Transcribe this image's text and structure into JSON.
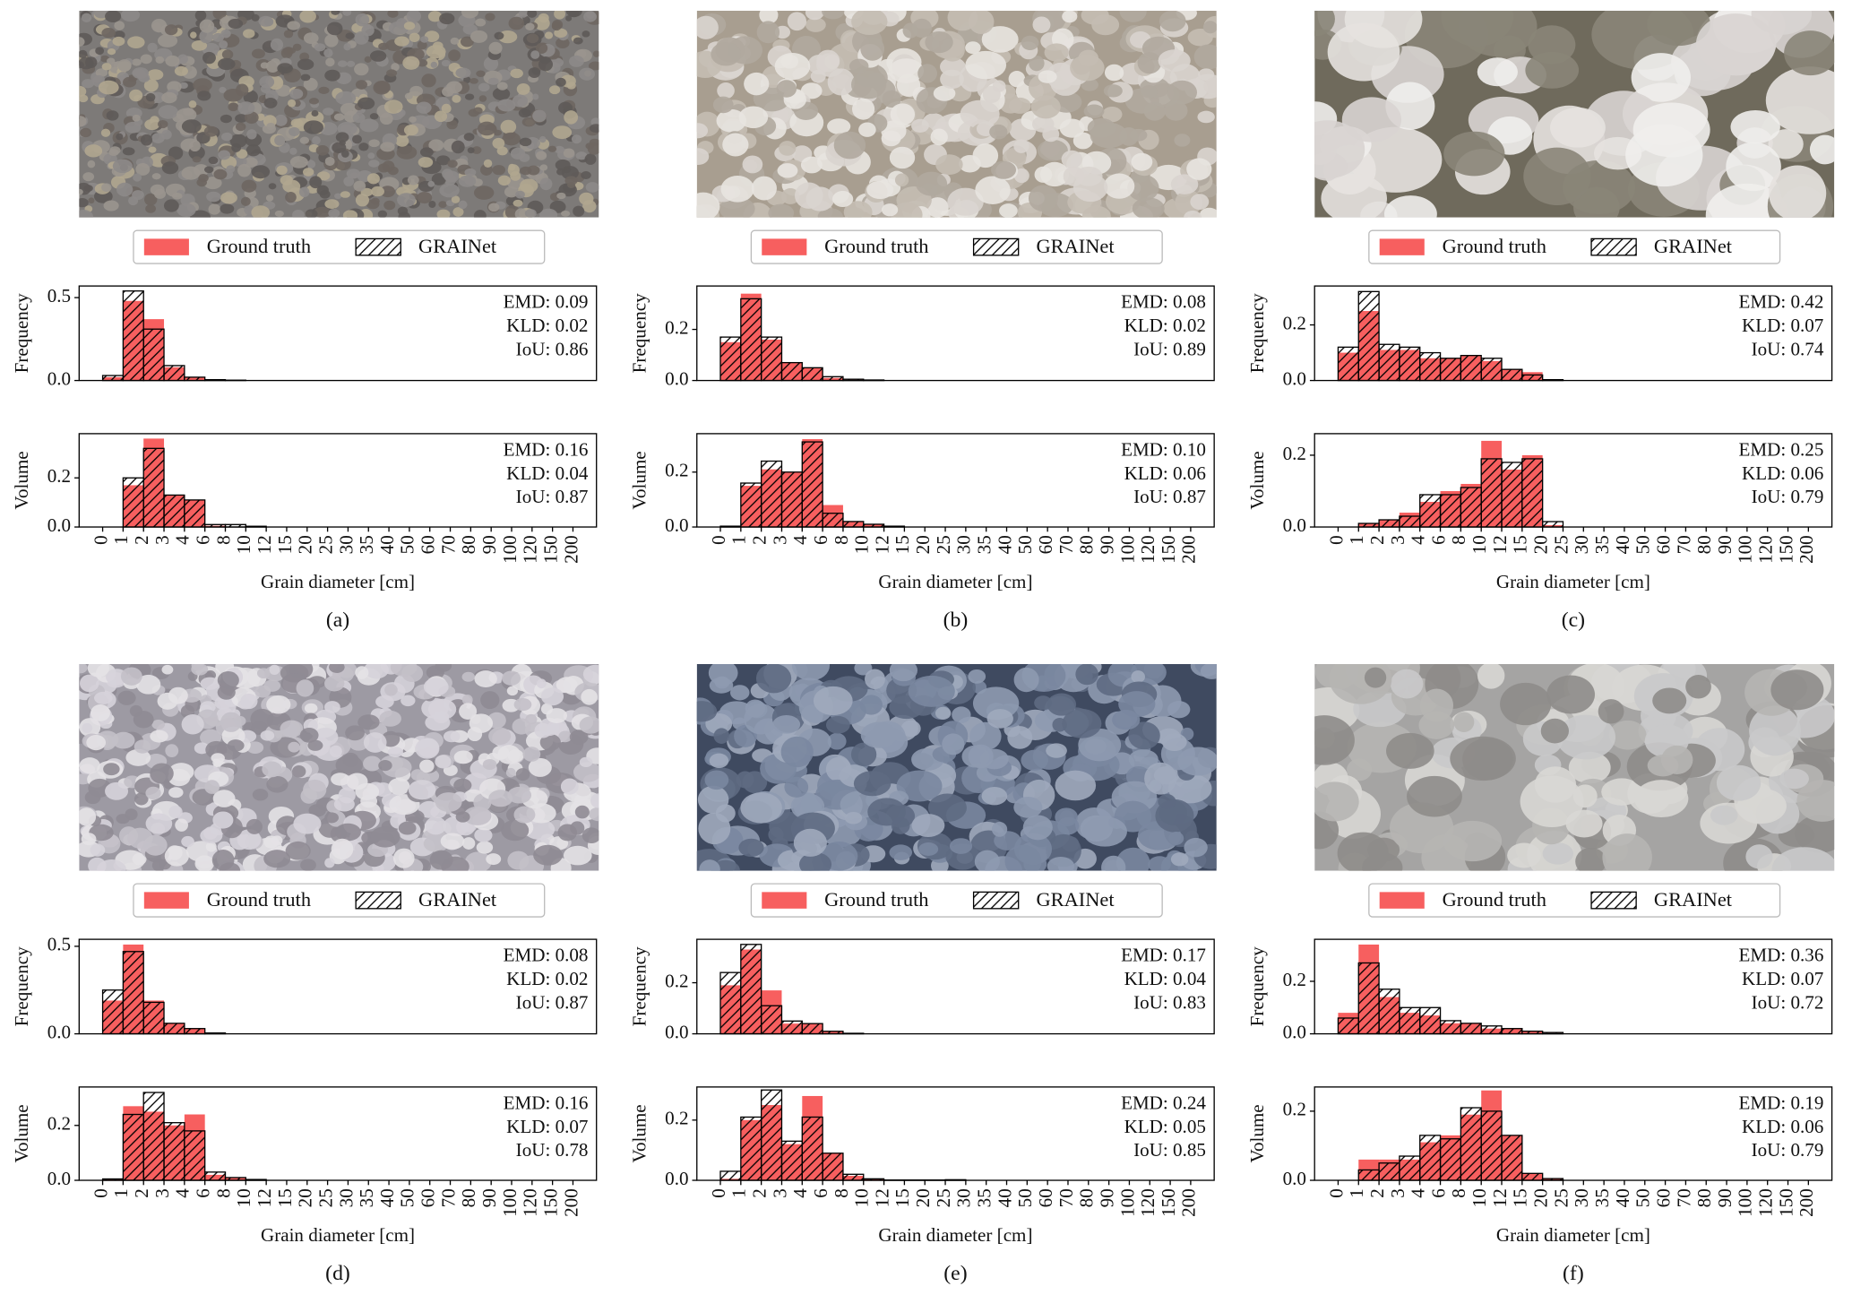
{
  "chart_data": [
    {
      "type": "histogram",
      "ylabel": "Frequency",
      "bins": [
        0,
        1,
        2,
        3,
        4,
        6,
        8,
        10,
        12,
        15,
        20,
        25,
        30,
        35,
        40,
        50,
        60,
        70,
        80,
        90,
        100,
        120,
        150,
        200
      ],
      "series": [
        {
          "name": "Ground truth",
          "color": "#f75f5f",
          "values": [
            0.02,
            0.48,
            0.37,
            0.08,
            0.02,
            0.003,
            0,
            0,
            0,
            0,
            0,
            0,
            0,
            0,
            0,
            0,
            0,
            0,
            0,
            0,
            0,
            0,
            0
          ]
        },
        {
          "name": "GRAINet",
          "color": "#000000",
          "hatch": "//",
          "values": [
            0.03,
            0.54,
            0.31,
            0.09,
            0.02,
            0.005,
            0.002,
            0,
            0,
            0,
            0,
            0,
            0,
            0,
            0,
            0,
            0,
            0,
            0,
            0,
            0,
            0,
            0
          ]
        }
      ],
      "ylim": [
        0,
        0.57
      ],
      "yticks": [
        {
          "value": 0,
          "label": "0.0"
        },
        0.5
      ],
      "annotations": [
        "EMD: 0.09",
        "KLD: 0.02",
        "IoU: 0.86"
      ]
    },
    {
      "type": "histogram",
      "ylabel": "Volume",
      "xlabel": "Grain diameter [cm]",
      "caption": "(a)",
      "bins": [
        0,
        1,
        2,
        3,
        4,
        6,
        8,
        10,
        12,
        15,
        20,
        25,
        30,
        35,
        40,
        50,
        60,
        70,
        80,
        90,
        100,
        120,
        150,
        200
      ],
      "series": [
        {
          "color": "#f75f5f",
          "values": [
            0,
            0.17,
            0.36,
            0.13,
            0.11,
            0.005,
            0.002,
            0,
            0,
            0,
            0,
            0,
            0,
            0,
            0,
            0,
            0,
            0,
            0,
            0,
            0,
            0,
            0
          ]
        },
        {
          "color": "#000000",
          "hatch": "//",
          "values": [
            0,
            0.2,
            0.32,
            0.13,
            0.11,
            0.01,
            0.01,
            0.003,
            0,
            0,
            0,
            0,
            0,
            0,
            0,
            0,
            0,
            0,
            0,
            0,
            0,
            0,
            0
          ]
        }
      ],
      "ylim": [
        0,
        0.38
      ],
      "yticks": [
        {
          "value": 0,
          "label": "0.0"
        },
        0.2
      ],
      "annotations": [
        "EMD: 0.16",
        "KLD: 0.04",
        "IoU: 0.87"
      ]
    },
    {
      "type": "histogram",
      "ylabel": "Frequency",
      "bins": [
        0,
        1,
        2,
        3,
        4,
        6,
        8,
        10,
        12,
        15,
        20,
        25,
        30,
        35,
        40,
        50,
        60,
        70,
        80,
        90,
        100,
        120,
        150,
        200
      ],
      "series": [
        {
          "name": "Ground truth",
          "color": "#f75f5f",
          "values": [
            0.15,
            0.34,
            0.16,
            0.07,
            0.05,
            0.01,
            0.003,
            0.001,
            0,
            0,
            0,
            0,
            0,
            0,
            0,
            0,
            0,
            0,
            0,
            0,
            0,
            0,
            0
          ]
        },
        {
          "name": "GRAINet",
          "color": "#000000",
          "hatch": "//",
          "values": [
            0.17,
            0.32,
            0.17,
            0.07,
            0.05,
            0.015,
            0.005,
            0.002,
            0,
            0,
            0,
            0,
            0,
            0,
            0,
            0,
            0,
            0,
            0,
            0,
            0,
            0,
            0
          ]
        }
      ],
      "ylim": [
        0,
        0.37
      ],
      "yticks": [
        {
          "value": 0,
          "label": "0.0"
        },
        0.2
      ],
      "annotations": [
        "EMD: 0.08",
        "KLD: 0.02",
        "IoU: 0.89"
      ]
    },
    {
      "type": "histogram",
      "ylabel": "Volume",
      "xlabel": "Grain diameter [cm]",
      "caption": "(b)",
      "bins": [
        0,
        1,
        2,
        3,
        4,
        6,
        8,
        10,
        12,
        15,
        20,
        25,
        30,
        35,
        40,
        50,
        60,
        70,
        80,
        90,
        100,
        120,
        150,
        200
      ],
      "series": [
        {
          "color": "#f75f5f",
          "values": [
            0,
            0.15,
            0.21,
            0.2,
            0.32,
            0.08,
            0.02,
            0.01,
            0.002,
            0,
            0,
            0,
            0,
            0,
            0,
            0,
            0,
            0,
            0,
            0,
            0,
            0,
            0
          ]
        },
        {
          "color": "#000000",
          "hatch": "//",
          "values": [
            0.003,
            0.16,
            0.24,
            0.2,
            0.31,
            0.05,
            0.02,
            0.01,
            0.003,
            0,
            0,
            0,
            0,
            0,
            0,
            0,
            0,
            0,
            0,
            0,
            0,
            0,
            0
          ]
        }
      ],
      "ylim": [
        0,
        0.34
      ],
      "yticks": [
        {
          "value": 0,
          "label": "0.0"
        },
        0.2
      ],
      "annotations": [
        "EMD: 0.10",
        "KLD: 0.06",
        "IoU: 0.87"
      ]
    },
    {
      "type": "histogram",
      "ylabel": "Frequency",
      "bins": [
        0,
        1,
        2,
        3,
        4,
        6,
        8,
        10,
        12,
        15,
        20,
        25,
        30,
        35,
        40,
        50,
        60,
        70,
        80,
        90,
        100,
        120,
        150,
        200
      ],
      "series": [
        {
          "name": "Ground truth",
          "color": "#f75f5f",
          "values": [
            0.1,
            0.25,
            0.11,
            0.11,
            0.08,
            0.08,
            0.09,
            0.07,
            0.04,
            0.03,
            0,
            0,
            0,
            0,
            0,
            0,
            0,
            0,
            0,
            0,
            0,
            0,
            0
          ]
        },
        {
          "name": "GRAINet",
          "color": "#000000",
          "hatch": "//",
          "values": [
            0.12,
            0.32,
            0.13,
            0.12,
            0.1,
            0.08,
            0.09,
            0.08,
            0.04,
            0.02,
            0.003,
            0,
            0,
            0,
            0,
            0,
            0,
            0,
            0,
            0,
            0,
            0,
            0
          ]
        }
      ],
      "ylim": [
        0,
        0.34
      ],
      "yticks": [
        {
          "value": 0,
          "label": "0.0"
        },
        0.2
      ],
      "annotations": [
        "EMD: 0.42",
        "KLD: 0.07",
        "IoU: 0.74"
      ]
    },
    {
      "type": "histogram",
      "ylabel": "Volume",
      "xlabel": "Grain diameter [cm]",
      "caption": "(c)",
      "bins": [
        0,
        1,
        2,
        3,
        4,
        6,
        8,
        10,
        12,
        15,
        20,
        25,
        30,
        35,
        40,
        50,
        60,
        70,
        80,
        90,
        100,
        120,
        150,
        200
      ],
      "series": [
        {
          "color": "#f75f5f",
          "values": [
            0,
            0.01,
            0.02,
            0.04,
            0.07,
            0.1,
            0.12,
            0.24,
            0.16,
            0.2,
            0.005,
            0,
            0,
            0,
            0,
            0,
            0,
            0,
            0,
            0,
            0,
            0,
            0
          ]
        },
        {
          "color": "#000000",
          "hatch": "//",
          "values": [
            0,
            0.01,
            0.02,
            0.03,
            0.09,
            0.09,
            0.11,
            0.19,
            0.18,
            0.19,
            0.015,
            0,
            0,
            0,
            0,
            0,
            0,
            0,
            0,
            0,
            0,
            0,
            0
          ]
        }
      ],
      "ylim": [
        0,
        0.26
      ],
      "yticks": [
        {
          "value": 0,
          "label": "0.0"
        },
        0.2
      ],
      "annotations": [
        "EMD: 0.25",
        "KLD: 0.06",
        "IoU: 0.79"
      ]
    },
    {
      "type": "histogram",
      "ylabel": "Frequency",
      "bins": [
        0,
        1,
        2,
        3,
        4,
        6,
        8,
        10,
        12,
        15,
        20,
        25,
        30,
        35,
        40,
        50,
        60,
        70,
        80,
        90,
        100,
        120,
        150,
        200
      ],
      "series": [
        {
          "name": "Ground truth",
          "color": "#f75f5f",
          "values": [
            0.19,
            0.51,
            0.19,
            0.06,
            0.03,
            0.003,
            0,
            0,
            0,
            0,
            0,
            0,
            0,
            0,
            0,
            0,
            0,
            0,
            0,
            0,
            0,
            0,
            0
          ]
        },
        {
          "name": "GRAINet",
          "color": "#000000",
          "hatch": "//",
          "values": [
            0.25,
            0.47,
            0.18,
            0.06,
            0.03,
            0.005,
            0,
            0,
            0,
            0,
            0,
            0,
            0,
            0,
            0,
            0,
            0,
            0,
            0,
            0,
            0,
            0,
            0
          ]
        }
      ],
      "ylim": [
        0,
        0.54
      ],
      "yticks": [
        {
          "value": 0,
          "label": "0.0"
        },
        0.5
      ],
      "annotations": [
        "EMD: 0.08",
        "KLD: 0.02",
        "IoU: 0.87"
      ]
    },
    {
      "type": "histogram",
      "ylabel": "Volume",
      "xlabel": "Grain diameter [cm]",
      "caption": "(d)",
      "bins": [
        0,
        1,
        2,
        3,
        4,
        6,
        8,
        10,
        12,
        15,
        20,
        25,
        30,
        35,
        40,
        50,
        60,
        70,
        80,
        90,
        100,
        120,
        150,
        200
      ],
      "series": [
        {
          "color": "#f75f5f",
          "values": [
            0.005,
            0.27,
            0.25,
            0.2,
            0.24,
            0.02,
            0.01,
            0.003,
            0,
            0,
            0,
            0,
            0,
            0,
            0,
            0,
            0,
            0,
            0,
            0,
            0,
            0,
            0
          ]
        },
        {
          "color": "#000000",
          "hatch": "//",
          "values": [
            0.005,
            0.24,
            0.32,
            0.21,
            0.18,
            0.03,
            0.01,
            0.003,
            0,
            0,
            0,
            0,
            0,
            0,
            0,
            0,
            0,
            0,
            0,
            0,
            0,
            0,
            0
          ]
        }
      ],
      "ylim": [
        0,
        0.34
      ],
      "yticks": [
        {
          "value": 0,
          "label": "0.0"
        },
        0.2
      ],
      "annotations": [
        "EMD: 0.16",
        "KLD: 0.07",
        "IoU: 0.78"
      ]
    },
    {
      "type": "histogram",
      "ylabel": "Frequency",
      "bins": [
        0,
        1,
        2,
        3,
        4,
        6,
        8,
        10,
        12,
        15,
        20,
        25,
        30,
        35,
        40,
        50,
        60,
        70,
        80,
        90,
        100,
        120,
        150,
        200
      ],
      "series": [
        {
          "name": "Ground truth",
          "color": "#f75f5f",
          "values": [
            0.19,
            0.33,
            0.17,
            0.04,
            0.04,
            0.01,
            0.002,
            0,
            0,
            0,
            0,
            0,
            0,
            0,
            0,
            0,
            0,
            0,
            0,
            0,
            0,
            0,
            0
          ]
        },
        {
          "name": "GRAINet",
          "color": "#000000",
          "hatch": "//",
          "values": [
            0.24,
            0.35,
            0.11,
            0.05,
            0.04,
            0.01,
            0.002,
            0,
            0,
            0,
            0,
            0,
            0,
            0,
            0,
            0,
            0,
            0,
            0,
            0,
            0,
            0,
            0
          ]
        }
      ],
      "ylim": [
        0,
        0.37
      ],
      "yticks": [
        {
          "value": 0,
          "label": "0.0"
        },
        0.2
      ],
      "annotations": [
        "EMD: 0.17",
        "KLD: 0.04",
        "IoU: 0.83"
      ]
    },
    {
      "type": "histogram",
      "ylabel": "Volume",
      "xlabel": "Grain diameter [cm]",
      "caption": "(e)",
      "bins": [
        0,
        1,
        2,
        3,
        4,
        6,
        8,
        10,
        12,
        15,
        20,
        25,
        30,
        35,
        40,
        50,
        60,
        70,
        80,
        90,
        100,
        120,
        150,
        200
      ],
      "series": [
        {
          "color": "#f75f5f",
          "values": [
            0.005,
            0.2,
            0.25,
            0.12,
            0.28,
            0.09,
            0.015,
            0.005,
            0,
            0,
            0,
            0,
            0,
            0,
            0,
            0,
            0,
            0,
            0,
            0,
            0,
            0,
            0
          ]
        },
        {
          "color": "#000000",
          "hatch": "//",
          "values": [
            0.03,
            0.21,
            0.3,
            0.13,
            0.21,
            0.09,
            0.02,
            0.005,
            0.001,
            0.001,
            0.001,
            0.002,
            0,
            0,
            0,
            0,
            0,
            0,
            0,
            0,
            0,
            0,
            0
          ]
        }
      ],
      "ylim": [
        0,
        0.31
      ],
      "yticks": [
        {
          "value": 0,
          "label": "0.0"
        },
        0.2
      ],
      "annotations": [
        "EMD: 0.24",
        "KLD: 0.05",
        "IoU: 0.85"
      ]
    },
    {
      "type": "histogram",
      "ylabel": "Frequency",
      "bins": [
        0,
        1,
        2,
        3,
        4,
        6,
        8,
        10,
        12,
        15,
        20,
        25,
        30,
        35,
        40,
        50,
        60,
        70,
        80,
        90,
        100,
        120,
        150,
        200
      ],
      "series": [
        {
          "name": "Ground truth",
          "color": "#f75f5f",
          "values": [
            0.08,
            0.34,
            0.14,
            0.08,
            0.07,
            0.04,
            0.04,
            0.02,
            0.02,
            0.01,
            0.003,
            0,
            0,
            0,
            0,
            0,
            0,
            0,
            0,
            0,
            0,
            0,
            0
          ]
        },
        {
          "name": "GRAINet",
          "color": "#000000",
          "hatch": "//",
          "values": [
            0.06,
            0.27,
            0.17,
            0.1,
            0.1,
            0.05,
            0.04,
            0.03,
            0.02,
            0.01,
            0.005,
            0,
            0,
            0,
            0,
            0,
            0,
            0,
            0,
            0,
            0,
            0,
            0
          ]
        }
      ],
      "ylim": [
        0,
        0.36
      ],
      "yticks": [
        {
          "value": 0,
          "label": "0.0"
        },
        0.2
      ],
      "annotations": [
        "EMD: 0.36",
        "KLD: 0.07",
        "IoU: 0.72"
      ]
    },
    {
      "type": "histogram",
      "ylabel": "Volume",
      "xlabel": "Grain diameter [cm]",
      "caption": "(f)",
      "bins": [
        0,
        1,
        2,
        3,
        4,
        6,
        8,
        10,
        12,
        15,
        20,
        25,
        30,
        35,
        40,
        50,
        60,
        70,
        80,
        90,
        100,
        120,
        150,
        200
      ],
      "series": [
        {
          "color": "#f75f5f",
          "values": [
            0,
            0.06,
            0.06,
            0.06,
            0.11,
            0.13,
            0.19,
            0.26,
            0.13,
            0.02,
            0.005,
            0,
            0,
            0,
            0,
            0,
            0,
            0,
            0,
            0,
            0,
            0,
            0
          ]
        },
        {
          "color": "#000000",
          "hatch": "//",
          "values": [
            0,
            0.03,
            0.05,
            0.07,
            0.13,
            0.12,
            0.21,
            0.2,
            0.13,
            0.02,
            0.005,
            0,
            0,
            0,
            0,
            0,
            0,
            0,
            0,
            0,
            0,
            0,
            0
          ]
        }
      ],
      "ylim": [
        0,
        0.27
      ],
      "yticks": [
        {
          "value": 0,
          "label": "0.0"
        },
        0.2
      ],
      "annotations": [
        "EMD: 0.19",
        "KLD: 0.06",
        "IoU: 0.79"
      ]
    }
  ]
}
